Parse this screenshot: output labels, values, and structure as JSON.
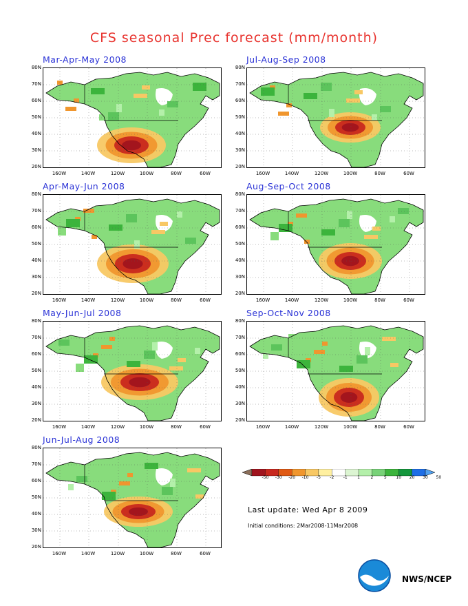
{
  "title": "CFS seasonal Prec forecast (mm/month)",
  "panels": [
    {
      "label": "Mar-Apr-May 2008"
    },
    {
      "label": "Jul-Aug-Sep 2008"
    },
    {
      "label": "Apr-May-Jun 2008"
    },
    {
      "label": "Aug-Sep-Oct 2008"
    },
    {
      "label": "May-Jun-Jul 2008"
    },
    {
      "label": "Sep-Oct-Nov 2008"
    },
    {
      "label": "Jun-Jul-Aug 2008"
    }
  ],
  "lat_labels": [
    "80N",
    "70N",
    "60N",
    "50N",
    "40N",
    "30N",
    "20N"
  ],
  "lon_labels": [
    "160W",
    "140W",
    "120W",
    "100W",
    "80W",
    "60W"
  ],
  "legend": {
    "labels": [
      "-50",
      "-30",
      "-20",
      "-10",
      "-5",
      "-2",
      "-1",
      "1",
      "2",
      "5",
      "10",
      "20",
      "30",
      "50"
    ],
    "colors": [
      "#8c6f5a",
      "#a0141e",
      "#c8281e",
      "#e05a14",
      "#f0962e",
      "#f8c864",
      "#fff0a0",
      "#ffffff",
      "#dcf5d2",
      "#b4f0aa",
      "#78d278",
      "#3cb43c",
      "#14963c",
      "#1e6ee6",
      "#50a0f0"
    ]
  },
  "last_update": "Last update: Wed Apr 8 2009",
  "initial_conditions": "Initial conditions: 2Mar2008-11Mar2008",
  "org": "NWS/NCEP",
  "colors": {
    "title": "#e8332e",
    "panel_title": "#2a32d6",
    "land_wet": "#88dc7c",
    "land_dry": "#d24a1c"
  }
}
